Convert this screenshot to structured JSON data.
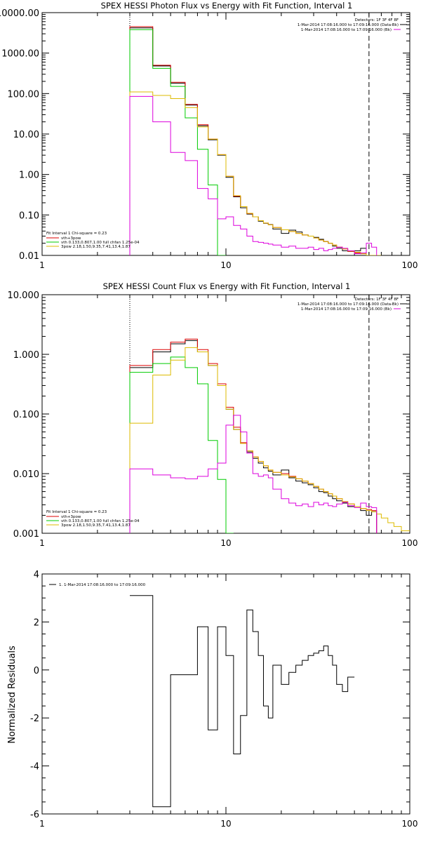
{
  "chart_data": [
    {
      "type": "line",
      "title": "SPEX HESSI Photon Flux vs Energy with Fit Function, Interval 1",
      "xlabel": "",
      "ylabel": "",
      "xscale": "log",
      "yscale": "log",
      "xlim": [
        1,
        100
      ],
      "ylim": [
        0.01,
        10000
      ],
      "x_ticks": [
        "1",
        "10",
        "100"
      ],
      "y_ticks": [
        "0.01",
        "0.10",
        "1.00",
        "10.00",
        "100.00",
        "1000.00",
        "10000.00"
      ],
      "legend_top_right": [
        "Detectors: 1F 3F 4F 8F",
        "1-Mar-2014 17:08:16.000 to 17:09:16.000 (Data-Bk)",
        "1-Mar-2014 17:08:16.000 to 17:09:16.000 (Bk)"
      ],
      "legend_bottom_left": [
        "Fit Interval 1    Chi-square = 0.23",
        "vth+3pow",
        "vth 0.133,0.807,1.00  full chfan 1.25e-04",
        "3pow 2.18,1.50,9.35,7.41,13.4,1.87"
      ],
      "vlines": [
        {
          "x": 3,
          "style": "dotted"
        },
        {
          "x": 60,
          "style": "dashed"
        }
      ],
      "edges": [
        3,
        4,
        5,
        6,
        7,
        8,
        9,
        10,
        11,
        12,
        13,
        14,
        15,
        16,
        17,
        18,
        20,
        22,
        24,
        26,
        28,
        30,
        32,
        34,
        36,
        38,
        40,
        43,
        46,
        50,
        54,
        58,
        62,
        66,
        70
      ],
      "series": [
        {
          "name": "Data-Bk",
          "color": "#000000",
          "values": [
            4200,
            480,
            180,
            52,
            16,
            7.2,
            3,
            0.85,
            0.28,
            0.15,
            0.105,
            0.09,
            0.07,
            0.062,
            0.058,
            0.045,
            0.035,
            0.042,
            0.038,
            0.032,
            0.03,
            0.028,
            0.025,
            0.022,
            0.02,
            0.017,
            0.015,
            0.013,
            0.0125,
            0.013,
            0.015,
            null,
            null,
            null
          ]
        },
        {
          "name": "vth+3pow",
          "color": "#dd0000",
          "values": [
            4500,
            500,
            190,
            54,
            17,
            7.5,
            3.1,
            0.9,
            0.29,
            0.16,
            0.108,
            0.09,
            0.072,
            0.063,
            0.057,
            0.049,
            0.043,
            0.039,
            0.035,
            0.032,
            0.03,
            0.027,
            0.024,
            0.022,
            0.02,
            0.018,
            0.016,
            0.0145,
            0.0125,
            0.0115,
            0.011,
            null,
            null,
            null
          ]
        },
        {
          "name": "vth",
          "color": "#00cc00",
          "values": [
            3800,
            420,
            150,
            25,
            4.2,
            0.55,
            0.01,
            null,
            null,
            null,
            null,
            null,
            null,
            null,
            null,
            null,
            null,
            null,
            null,
            null,
            null,
            null,
            null,
            null,
            null,
            null,
            null,
            null,
            null,
            null,
            null,
            null,
            null,
            null
          ]
        },
        {
          "name": "3pow",
          "color": "#ddbb00",
          "values": [
            110,
            90,
            75,
            45,
            15,
            7.5,
            3.1,
            0.9,
            0.3,
            0.16,
            0.11,
            0.09,
            0.072,
            0.063,
            0.057,
            0.049,
            0.043,
            0.039,
            0.035,
            0.032,
            0.03,
            0.027,
            0.024,
            0.022,
            0.02,
            0.018,
            0.016,
            0.0145,
            0.0128,
            0.012,
            0.011,
            0.0098,
            0.009,
            0.0085
          ]
        },
        {
          "name": "Bk",
          "color": "#dd00dd",
          "values": [
            85,
            20,
            3.5,
            2.2,
            0.45,
            0.25,
            0.08,
            0.09,
            0.055,
            0.045,
            0.03,
            0.022,
            0.021,
            0.02,
            0.019,
            0.018,
            0.016,
            0.017,
            0.015,
            0.015,
            0.016,
            0.014,
            0.015,
            0.013,
            0.014,
            0.015,
            0.016,
            0.015,
            0.013,
            0.011,
            0.0115,
            0.02,
            0.016,
            null
          ]
        }
      ]
    },
    {
      "type": "line",
      "title": "SPEX HESSI Count Flux vs Energy with Fit Function, Interval 1",
      "xlabel": "",
      "ylabel": "",
      "xscale": "log",
      "yscale": "log",
      "xlim": [
        1,
        100
      ],
      "ylim": [
        0.001,
        10
      ],
      "x_ticks": [
        "1",
        "10",
        "100"
      ],
      "y_ticks": [
        "0.001",
        "0.010",
        "0.100",
        "1.000",
        "10.000"
      ],
      "legend_top_right": [
        "Detectors: 1F 3F 4F 8F",
        "1-Mar-2014 17:08:16.000 to 17:09:16.000 (Data-Bk)",
        "1-Mar-2014 17:08:16.000 to 17:09:16.000 (Bk)"
      ],
      "legend_bottom_left": [
        "Fit Interval 1    Chi-square = 0.23",
        "vth+3pow",
        "vth 0.133,0.807,1.00  full chfan 1.25e-04",
        "3pow 2.18,1.50,9.35,7.41,13.4,1.87"
      ],
      "vlines": [
        {
          "x": 3,
          "style": "dotted"
        },
        {
          "x": 60,
          "style": "dashed"
        }
      ],
      "edges": [
        3,
        4,
        5,
        6,
        7,
        8,
        9,
        10,
        11,
        12,
        13,
        14,
        15,
        16,
        17,
        18,
        20,
        22,
        24,
        26,
        28,
        30,
        32,
        34,
        36,
        38,
        40,
        43,
        46,
        50,
        54,
        58,
        62,
        66,
        70,
        76,
        82,
        90,
        100
      ],
      "series": [
        {
          "name": "Data-Bk",
          "color": "#000000",
          "values": [
            0.6,
            1.1,
            1.5,
            1.7,
            1.1,
            0.65,
            0.3,
            0.12,
            0.055,
            0.032,
            0.023,
            0.018,
            0.015,
            0.0125,
            0.011,
            0.0095,
            0.0115,
            0.0085,
            0.0075,
            0.007,
            0.0065,
            0.0058,
            0.005,
            0.0048,
            0.0042,
            0.0038,
            0.0035,
            0.0032,
            0.0028,
            0.0028,
            0.0024,
            0.002,
            0.0023,
            null,
            null,
            null,
            null,
            null
          ]
        },
        {
          "name": "vth+3pow",
          "color": "#dd0000",
          "values": [
            0.65,
            1.2,
            1.6,
            1.8,
            1.2,
            0.7,
            0.32,
            0.13,
            0.06,
            0.033,
            0.024,
            0.019,
            0.016,
            0.0135,
            0.0115,
            0.0105,
            0.01,
            0.009,
            0.0082,
            0.0075,
            0.0068,
            0.0061,
            0.0055,
            0.005,
            0.0046,
            0.0042,
            0.0038,
            0.0034,
            0.0031,
            0.0028,
            0.0026,
            0.0025,
            0.0024,
            null,
            null,
            null,
            null,
            null
          ]
        },
        {
          "name": "vth",
          "color": "#00cc00",
          "values": [
            0.5,
            0.7,
            0.9,
            0.6,
            0.32,
            0.036,
            0.008,
            0.001,
            null,
            null,
            null,
            null,
            null,
            null,
            null,
            null,
            null,
            null,
            null,
            null,
            null,
            null,
            null,
            null,
            null,
            null,
            null,
            null,
            null,
            null,
            null,
            null,
            null,
            null,
            null,
            null,
            null,
            null
          ]
        },
        {
          "name": "3pow",
          "color": "#ddbb00",
          "values": [
            0.07,
            0.45,
            0.8,
            1.3,
            1.1,
            0.65,
            0.3,
            0.12,
            0.055,
            0.032,
            0.024,
            0.019,
            0.016,
            0.0135,
            0.0115,
            0.0105,
            0.0095,
            0.0088,
            0.0082,
            0.0075,
            0.0068,
            0.0061,
            0.0055,
            0.005,
            0.0046,
            0.0042,
            0.0038,
            0.0034,
            0.0031,
            0.0028,
            0.0026,
            0.0024,
            0.0023,
            0.0021,
            0.0018,
            0.0015,
            0.0013,
            0.0011
          ]
        },
        {
          "name": "Bk",
          "color": "#dd00dd",
          "values": [
            0.012,
            0.0095,
            0.0085,
            0.0082,
            0.009,
            0.012,
            0.015,
            0.065,
            0.095,
            0.05,
            0.022,
            0.01,
            0.009,
            0.0095,
            0.0085,
            0.0055,
            0.0038,
            0.0032,
            0.0029,
            0.0031,
            0.0028,
            0.0033,
            0.003,
            0.0032,
            0.0029,
            0.0028,
            0.0031,
            0.0033,
            0.0029,
            0.0027,
            0.0032,
            0.0028,
            0.0027,
            null,
            null,
            null,
            null,
            null
          ]
        }
      ]
    },
    {
      "type": "line",
      "title": "",
      "xlabel": "",
      "ylabel": "Normalized Residuals",
      "xscale": "log",
      "yscale": "linear",
      "xlim": [
        1,
        100
      ],
      "ylim": [
        -6,
        4
      ],
      "x_ticks": [
        "1",
        "10",
        "100"
      ],
      "y_ticks": [
        "-6",
        "-4",
        "-2",
        "0",
        "2",
        "4"
      ],
      "legend_top_left": [
        "1.  1-Mar-2014 17:08:16.000 to 17:09:16.000"
      ],
      "edges": [
        3,
        4,
        5,
        6,
        7,
        8,
        9,
        10,
        11,
        12,
        13,
        14,
        15,
        16,
        17,
        18,
        20,
        22,
        24,
        26,
        28,
        30,
        32,
        34,
        36,
        38,
        40,
        43,
        46,
        50,
        54,
        58,
        62
      ],
      "series": [
        {
          "name": "Residuals",
          "color": "#000000",
          "values": [
            3.1,
            -5.7,
            -0.2,
            -0.2,
            1.8,
            -2.5,
            1.8,
            0.6,
            -3.5,
            -1.9,
            2.5,
            1.6,
            0.6,
            -1.5,
            -2.0,
            0.2,
            -0.6,
            -0.1,
            0.2,
            0.4,
            0.6,
            0.7,
            0.8,
            1.0,
            0.6,
            0.2,
            -0.6,
            -0.9,
            -0.3,
            null,
            null,
            null
          ]
        }
      ]
    }
  ]
}
